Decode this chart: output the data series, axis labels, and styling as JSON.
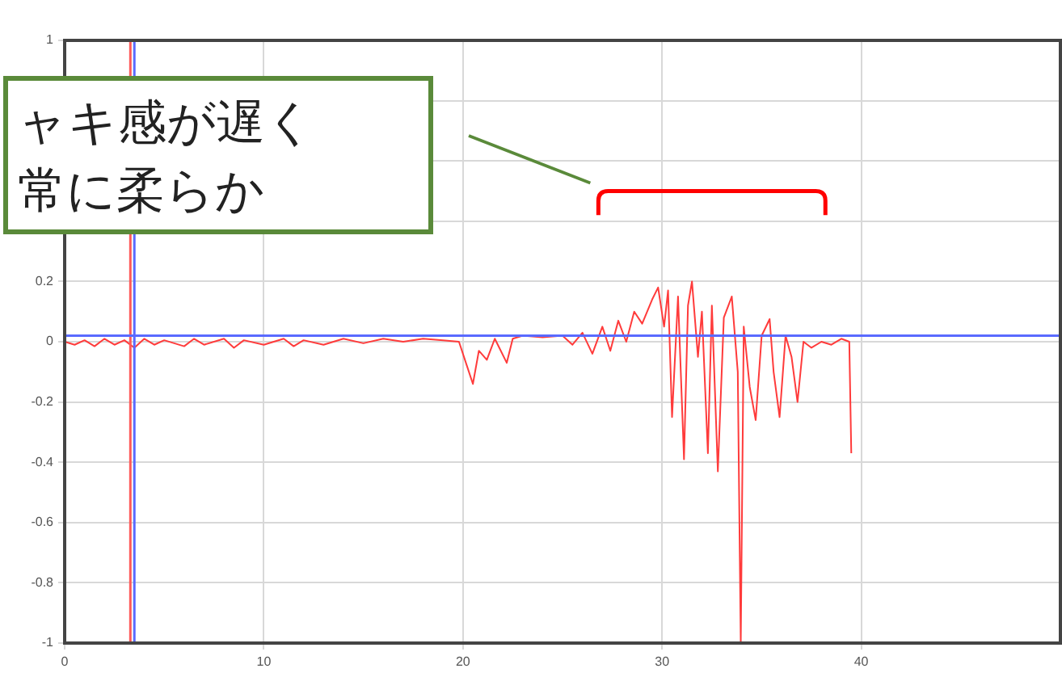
{
  "chart_data": {
    "type": "line",
    "annotations": [
      "ャキ感が遅く",
      "常に柔らか"
    ],
    "xlim": [
      0,
      50
    ],
    "xticks": [
      0,
      10,
      20,
      30,
      40
    ],
    "ylim": [
      -1,
      1
    ],
    "yticks": [
      -1,
      -0.8,
      -0.6,
      -0.4,
      -0.2,
      0,
      0.2,
      {
        "value": 0.4,
        "label": null
      },
      {
        "value": 0.6,
        "label": null
      },
      {
        "value": 0.8,
        "label": null
      },
      1
    ],
    "grid": true,
    "legend": false,
    "marker": "none",
    "line_style": "solid",
    "ref_lines": [
      {
        "axis": "x",
        "value": 3.3,
        "color": "#ff5a5a"
      },
      {
        "axis": "x",
        "value": 3.5,
        "color": "#5a6aff"
      },
      {
        "axis": "y",
        "value": 0.02,
        "color": "#5a6aff"
      }
    ],
    "series": [
      {
        "color": "#ff3b3b",
        "x": [
          0,
          0.5,
          1,
          1.5,
          2,
          2.5,
          3,
          3.5,
          4,
          4.5,
          5,
          6,
          6.5,
          7,
          8,
          8.5,
          9,
          10,
          11,
          11.5,
          12,
          13,
          14,
          15,
          16,
          17,
          18,
          19,
          19.8,
          20.2,
          20.5,
          20.8,
          21.2,
          21.6,
          22.2,
          22.5,
          23,
          24,
          25,
          25.5,
          26,
          26.5,
          27,
          27.4,
          27.8,
          28.2,
          28.6,
          29,
          29.5,
          29.8,
          30.1,
          30.3,
          30.5,
          30.8,
          31.1,
          31.3,
          31.5,
          31.8,
          32,
          32.3,
          32.5,
          32.8,
          33.1,
          33.5,
          33.8,
          33.95,
          34.1,
          34.4,
          34.7,
          35,
          35.4,
          35.6,
          35.9,
          36.2,
          36.5,
          36.8,
          37.1,
          37.5,
          38,
          38.5,
          39,
          39.4,
          39.5
        ],
        "values": [
          0,
          -0.01,
          0.005,
          -0.015,
          0.01,
          -0.01,
          0.005,
          -0.02,
          0.01,
          -0.01,
          0.005,
          -0.015,
          0.01,
          -0.01,
          0.01,
          -0.02,
          0.005,
          -0.01,
          0.01,
          -0.015,
          0.005,
          -0.01,
          0.01,
          -0.005,
          0.01,
          0,
          0.01,
          0.005,
          0,
          -0.08,
          -0.14,
          -0.03,
          -0.06,
          0.01,
          -0.07,
          0.01,
          0.02,
          0.015,
          0.02,
          -0.01,
          0.03,
          -0.04,
          0.05,
          -0.03,
          0.07,
          0,
          0.1,
          0.06,
          0.14,
          0.18,
          0.05,
          0.17,
          -0.25,
          0.15,
          -0.39,
          0.12,
          0.2,
          -0.05,
          0.1,
          -0.37,
          0.12,
          -0.43,
          0.08,
          0.15,
          -0.1,
          -1,
          0.05,
          -0.15,
          -0.26,
          0.02,
          0.075,
          -0.1,
          -0.25,
          0.02,
          -0.05,
          -0.2,
          0,
          -0.02,
          0,
          -0.01,
          0.01,
          0,
          -0.37
        ]
      }
    ]
  }
}
